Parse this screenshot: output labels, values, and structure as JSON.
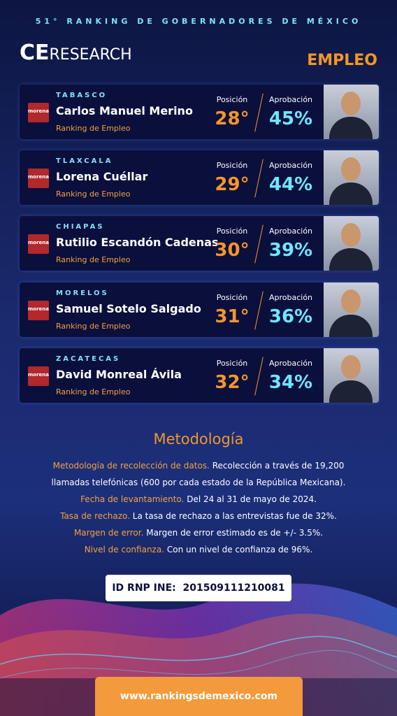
{
  "header": {
    "subtitle": "51° RANKING DE GOBERNADORES DE MÉXICO",
    "logo_ce": "CE",
    "logo_research": "RESEARCH",
    "section": "EMPLEO"
  },
  "cards": [
    {
      "state": "TABASCO",
      "name": "Carlos Manuel Merino",
      "party": "morena",
      "ranking_label": "Ranking de Empleo",
      "position_label": "Posición",
      "position": "28°",
      "approval_label": "Aprobación",
      "approval": "45%"
    },
    {
      "state": "TLAXCALA",
      "name": "Lorena Cuéllar",
      "party": "morena",
      "ranking_label": "Ranking de Empleo",
      "position_label": "Posición",
      "position": "29°",
      "approval_label": "Aprobación",
      "approval": "44%"
    },
    {
      "state": "CHIAPAS",
      "name": "Rutilio Escandón Cadenas",
      "party": "morena",
      "ranking_label": "Ranking de Empleo",
      "position_label": "Posición",
      "position": "30°",
      "approval_label": "Aprobación",
      "approval": "39%"
    },
    {
      "state": "MORELOS",
      "name": "Samuel Sotelo Salgado",
      "party": "morena",
      "ranking_label": "Ranking de Empleo",
      "position_label": "Posición",
      "position": "31°",
      "approval_label": "Aprobación",
      "approval": "36%"
    },
    {
      "state": "ZACATECAS",
      "name": "David Monreal Ávila",
      "party": "morena",
      "ranking_label": "Ranking de Empleo",
      "position_label": "Posición",
      "position": "32°",
      "approval_label": "Aprobación",
      "approval": "34%"
    }
  ],
  "methodology": {
    "title": "Metodología",
    "items": [
      {
        "label": "Metodología de recolección de datos.",
        "text": "Recolección a través de 19,200 llamadas telefónicas (600 por cada estado de la República Mexicana)."
      },
      {
        "label": "Fecha de levantamiento.",
        "text": "Del 24 al 31 de mayo de 2024."
      },
      {
        "label": "Tasa de rechazo.",
        "text": "La tasa de rechazo a las entrevistas fue de 32%."
      },
      {
        "label": "Margen de error.",
        "text": "Margen de error estimado es de +/- 3.5%."
      },
      {
        "label": "Nivel de confianza.",
        "text": "Con un nivel de confianza de 96%."
      }
    ]
  },
  "footer": {
    "id_label": "ID RNP INE:",
    "id_value": "201509111210081",
    "url": "www.rankingsdemexico.com"
  }
}
